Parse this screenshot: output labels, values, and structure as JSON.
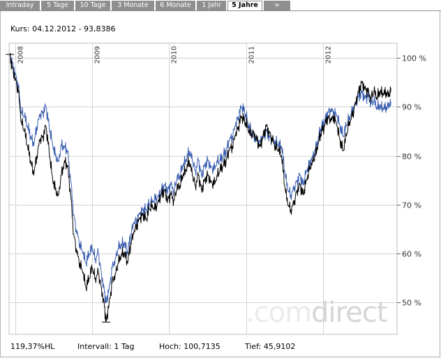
{
  "tabs": [
    {
      "label": "Intraday",
      "active": false
    },
    {
      "label": "5 Tage",
      "active": false
    },
    {
      "label": "10 Tage",
      "active": false
    },
    {
      "label": "3 Monate",
      "active": false
    },
    {
      "label": "6 Monate",
      "active": false
    },
    {
      "label": "1 Jahr",
      "active": false
    },
    {
      "label": "5 Jahre",
      "active": true
    },
    {
      "label": "∞",
      "active": false
    }
  ],
  "header": {
    "kurs": "Kurs: 04.12.2012 - 93,8386"
  },
  "footer": {
    "hl": "119,37%HL",
    "interval": "Intervall: 1 Tag",
    "hoch": "Hoch: 100,7135",
    "tief": "Tief: 45,9102"
  },
  "watermark": {
    "text_light": ".com",
    "text_dark": "direct"
  },
  "colors": {
    "series_main": "#000000",
    "series_compare": "#3a5fb0",
    "grid": "#d3d3d3",
    "tab_bg": "#8f8f8f"
  },
  "chart_data": {
    "type": "line",
    "ylim": [
      43.5,
      103
    ],
    "y_ticks": [
      {
        "value": 100,
        "label": "100 %"
      },
      {
        "value": 90,
        "label": "90 %"
      },
      {
        "value": 80,
        "label": "80 %"
      },
      {
        "value": 70,
        "label": "70 %"
      },
      {
        "value": 60,
        "label": "60 %"
      },
      {
        "value": 50,
        "label": "50 %"
      }
    ],
    "xlim": [
      2007.92,
      2012.96
    ],
    "x_ticks": [
      {
        "value": 2008,
        "label": "2008"
      },
      {
        "value": 2009,
        "label": "2009"
      },
      {
        "value": 2010,
        "label": "2010"
      },
      {
        "value": 2011,
        "label": "2011"
      },
      {
        "value": 2012,
        "label": "2012"
      }
    ],
    "grid": true,
    "series": [
      {
        "color": "#000000",
        "points": [
          [
            2007.93,
            100.7
          ],
          [
            2007.96,
            98
          ],
          [
            2008.0,
            96
          ],
          [
            2008.04,
            93
          ],
          [
            2008.08,
            87
          ],
          [
            2008.12,
            85
          ],
          [
            2008.16,
            82
          ],
          [
            2008.2,
            79
          ],
          [
            2008.24,
            76
          ],
          [
            2008.28,
            80
          ],
          [
            2008.32,
            83
          ],
          [
            2008.36,
            84
          ],
          [
            2008.4,
            86
          ],
          [
            2008.44,
            81
          ],
          [
            2008.48,
            76
          ],
          [
            2008.52,
            73
          ],
          [
            2008.56,
            72
          ],
          [
            2008.6,
            76
          ],
          [
            2008.64,
            79
          ],
          [
            2008.68,
            78
          ],
          [
            2008.72,
            72
          ],
          [
            2008.76,
            64
          ],
          [
            2008.8,
            60
          ],
          [
            2008.84,
            58
          ],
          [
            2008.88,
            56
          ],
          [
            2008.92,
            53
          ],
          [
            2008.96,
            55
          ],
          [
            2009.0,
            57
          ],
          [
            2009.04,
            55
          ],
          [
            2009.08,
            56
          ],
          [
            2009.12,
            53
          ],
          [
            2009.16,
            49
          ],
          [
            2009.18,
            46
          ],
          [
            2009.22,
            50
          ],
          [
            2009.26,
            54
          ],
          [
            2009.3,
            56
          ],
          [
            2009.34,
            58
          ],
          [
            2009.38,
            60
          ],
          [
            2009.42,
            60
          ],
          [
            2009.46,
            58
          ],
          [
            2009.5,
            62
          ],
          [
            2009.54,
            64
          ],
          [
            2009.58,
            66
          ],
          [
            2009.62,
            67
          ],
          [
            2009.66,
            68
          ],
          [
            2009.7,
            67
          ],
          [
            2009.74,
            69
          ],
          [
            2009.78,
            70
          ],
          [
            2009.82,
            69
          ],
          [
            2009.86,
            71
          ],
          [
            2009.9,
            72
          ],
          [
            2009.94,
            73
          ],
          [
            2009.98,
            71
          ],
          [
            2010.02,
            72
          ],
          [
            2010.06,
            71
          ],
          [
            2010.1,
            73
          ],
          [
            2010.14,
            74
          ],
          [
            2010.18,
            76
          ],
          [
            2010.22,
            77
          ],
          [
            2010.26,
            79
          ],
          [
            2010.3,
            76
          ],
          [
            2010.34,
            74
          ],
          [
            2010.38,
            76
          ],
          [
            2010.42,
            73
          ],
          [
            2010.46,
            75
          ],
          [
            2010.5,
            76
          ],
          [
            2010.54,
            75
          ],
          [
            2010.58,
            74
          ],
          [
            2010.62,
            76
          ],
          [
            2010.66,
            77
          ],
          [
            2010.7,
            78
          ],
          [
            2010.74,
            79
          ],
          [
            2010.78,
            81
          ],
          [
            2010.82,
            82
          ],
          [
            2010.86,
            84
          ],
          [
            2010.9,
            86
          ],
          [
            2010.94,
            88
          ],
          [
            2010.98,
            87
          ],
          [
            2011.02,
            86
          ],
          [
            2011.06,
            84
          ],
          [
            2011.1,
            85
          ],
          [
            2011.14,
            83
          ],
          [
            2011.18,
            82
          ],
          [
            2011.22,
            84
          ],
          [
            2011.26,
            86
          ],
          [
            2011.3,
            85
          ],
          [
            2011.34,
            83
          ],
          [
            2011.38,
            82
          ],
          [
            2011.42,
            81
          ],
          [
            2011.46,
            80
          ],
          [
            2011.5,
            74
          ],
          [
            2011.54,
            70
          ],
          [
            2011.58,
            69
          ],
          [
            2011.62,
            70
          ],
          [
            2011.66,
            73
          ],
          [
            2011.7,
            74
          ],
          [
            2011.74,
            72
          ],
          [
            2011.78,
            75
          ],
          [
            2011.82,
            77
          ],
          [
            2011.86,
            79
          ],
          [
            2011.9,
            80
          ],
          [
            2011.94,
            83
          ],
          [
            2011.98,
            85
          ],
          [
            2012.02,
            86
          ],
          [
            2012.06,
            88
          ],
          [
            2012.1,
            87
          ],
          [
            2012.14,
            88
          ],
          [
            2012.18,
            86
          ],
          [
            2012.22,
            83
          ],
          [
            2012.26,
            81
          ],
          [
            2012.3,
            84
          ],
          [
            2012.34,
            87
          ],
          [
            2012.38,
            88
          ],
          [
            2012.42,
            91
          ],
          [
            2012.46,
            93
          ],
          [
            2012.5,
            95
          ],
          [
            2012.54,
            94
          ],
          [
            2012.58,
            93
          ],
          [
            2012.62,
            92
          ],
          [
            2012.66,
            93
          ],
          [
            2012.7,
            92
          ],
          [
            2012.74,
            93
          ],
          [
            2012.78,
            92.5
          ],
          [
            2012.82,
            93
          ],
          [
            2012.86,
            92
          ],
          [
            2012.88,
            93.8
          ]
        ]
      },
      {
        "color": "#3a5fb0",
        "points": [
          [
            2007.93,
            100.3
          ],
          [
            2007.96,
            99
          ],
          [
            2008.0,
            97
          ],
          [
            2008.04,
            94
          ],
          [
            2008.08,
            89
          ],
          [
            2008.12,
            88
          ],
          [
            2008.16,
            86
          ],
          [
            2008.2,
            84
          ],
          [
            2008.24,
            82
          ],
          [
            2008.28,
            86
          ],
          [
            2008.32,
            88
          ],
          [
            2008.36,
            89
          ],
          [
            2008.4,
            90
          ],
          [
            2008.44,
            86
          ],
          [
            2008.48,
            83
          ],
          [
            2008.52,
            80
          ],
          [
            2008.56,
            79
          ],
          [
            2008.6,
            82
          ],
          [
            2008.64,
            82
          ],
          [
            2008.68,
            81
          ],
          [
            2008.72,
            75
          ],
          [
            2008.76,
            68
          ],
          [
            2008.8,
            64
          ],
          [
            2008.84,
            62
          ],
          [
            2008.88,
            60
          ],
          [
            2008.92,
            58
          ],
          [
            2008.96,
            60
          ],
          [
            2009.0,
            61
          ],
          [
            2009.04,
            59
          ],
          [
            2009.08,
            60
          ],
          [
            2009.12,
            56
          ],
          [
            2009.16,
            52
          ],
          [
            2009.18,
            50
          ],
          [
            2009.22,
            53
          ],
          [
            2009.26,
            57
          ],
          [
            2009.3,
            59
          ],
          [
            2009.34,
            61
          ],
          [
            2009.38,
            62
          ],
          [
            2009.42,
            62
          ],
          [
            2009.46,
            60
          ],
          [
            2009.5,
            64
          ],
          [
            2009.54,
            66
          ],
          [
            2009.58,
            67
          ],
          [
            2009.62,
            68
          ],
          [
            2009.66,
            69
          ],
          [
            2009.7,
            69
          ],
          [
            2009.74,
            70
          ],
          [
            2009.78,
            71
          ],
          [
            2009.82,
            71
          ],
          [
            2009.86,
            72
          ],
          [
            2009.9,
            73
          ],
          [
            2009.94,
            74
          ],
          [
            2009.98,
            73
          ],
          [
            2010.02,
            74
          ],
          [
            2010.06,
            73
          ],
          [
            2010.1,
            75
          ],
          [
            2010.14,
            76
          ],
          [
            2010.18,
            78
          ],
          [
            2010.22,
            79
          ],
          [
            2010.26,
            81
          ],
          [
            2010.3,
            79
          ],
          [
            2010.34,
            77
          ],
          [
            2010.38,
            79
          ],
          [
            2010.42,
            76
          ],
          [
            2010.46,
            78
          ],
          [
            2010.5,
            79
          ],
          [
            2010.54,
            78
          ],
          [
            2010.58,
            77
          ],
          [
            2010.62,
            79
          ],
          [
            2010.66,
            79
          ],
          [
            2010.7,
            80
          ],
          [
            2010.74,
            81
          ],
          [
            2010.78,
            83
          ],
          [
            2010.82,
            84
          ],
          [
            2010.86,
            86
          ],
          [
            2010.9,
            88
          ],
          [
            2010.94,
            90
          ],
          [
            2010.98,
            89
          ],
          [
            2011.02,
            87
          ],
          [
            2011.06,
            85
          ],
          [
            2011.1,
            84
          ],
          [
            2011.14,
            83
          ],
          [
            2011.18,
            83
          ],
          [
            2011.22,
            84
          ],
          [
            2011.26,
            85
          ],
          [
            2011.3,
            84
          ],
          [
            2011.34,
            83
          ],
          [
            2011.38,
            83
          ],
          [
            2011.42,
            82
          ],
          [
            2011.46,
            82
          ],
          [
            2011.5,
            77
          ],
          [
            2011.54,
            73
          ],
          [
            2011.58,
            72
          ],
          [
            2011.62,
            73
          ],
          [
            2011.66,
            75
          ],
          [
            2011.7,
            76
          ],
          [
            2011.74,
            74
          ],
          [
            2011.78,
            77
          ],
          [
            2011.82,
            78
          ],
          [
            2011.86,
            80
          ],
          [
            2011.9,
            81
          ],
          [
            2011.94,
            84
          ],
          [
            2011.98,
            86
          ],
          [
            2012.02,
            87
          ],
          [
            2012.06,
            89
          ],
          [
            2012.1,
            89
          ],
          [
            2012.14,
            89
          ],
          [
            2012.18,
            88
          ],
          [
            2012.22,
            86
          ],
          [
            2012.26,
            84
          ],
          [
            2012.3,
            86
          ],
          [
            2012.34,
            88
          ],
          [
            2012.38,
            89
          ],
          [
            2012.42,
            91
          ],
          [
            2012.46,
            92
          ],
          [
            2012.5,
            93
          ],
          [
            2012.54,
            92
          ],
          [
            2012.58,
            92
          ],
          [
            2012.62,
            91
          ],
          [
            2012.66,
            91
          ],
          [
            2012.7,
            90
          ],
          [
            2012.74,
            90
          ],
          [
            2012.78,
            89.5
          ],
          [
            2012.82,
            90
          ],
          [
            2012.86,
            90
          ],
          [
            2012.88,
            91
          ]
        ]
      }
    ]
  }
}
